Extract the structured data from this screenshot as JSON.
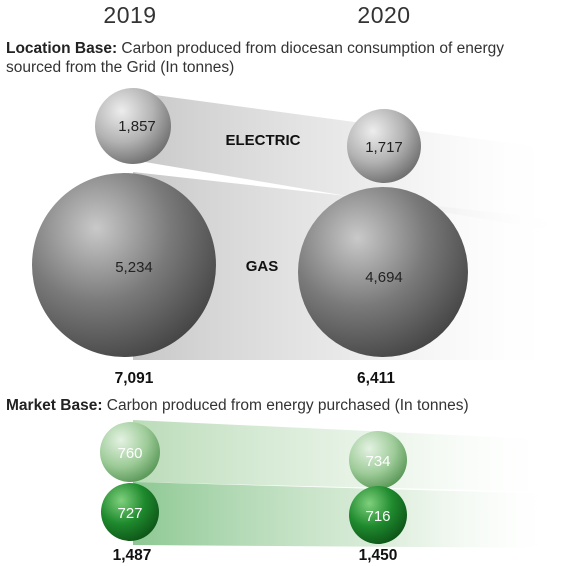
{
  "years": [
    "2019",
    "2020"
  ],
  "location_header": {
    "bold": "Location Base:",
    "text": " Carbon produced from diocesan consumption of energy sourced from the Grid (In tonnes)"
  },
  "market_header": {
    "bold": "Market Base:",
    "text": " Carbon produced from energy purchased (In tonnes)"
  },
  "colors": {
    "electric": "#c8c8c8",
    "gas": "#6b6b6b",
    "market_top": "#9ccc99",
    "market_bottom": "#1f8a2e"
  },
  "chart_data": [
    {
      "type": "bubble",
      "title": "Location Base",
      "categories": [
        "2019",
        "2020"
      ],
      "series": [
        {
          "name": "ELECTRIC",
          "values": [
            1857,
            1717
          ],
          "labels": [
            "1,857",
            "1,717"
          ]
        },
        {
          "name": "GAS",
          "values": [
            5234,
            4694
          ],
          "labels": [
            "5,234",
            "4,694"
          ]
        }
      ],
      "totals": [
        "7,091",
        "6,411"
      ]
    },
    {
      "type": "bubble",
      "title": "Market Base",
      "categories": [
        "2019",
        "2020"
      ],
      "series": [
        {
          "values": [
            760,
            734
          ],
          "labels": [
            "760",
            "734"
          ]
        },
        {
          "values": [
            727,
            716
          ],
          "labels": [
            "727",
            "716"
          ]
        }
      ],
      "totals": [
        "1,487",
        "1,450"
      ]
    }
  ]
}
